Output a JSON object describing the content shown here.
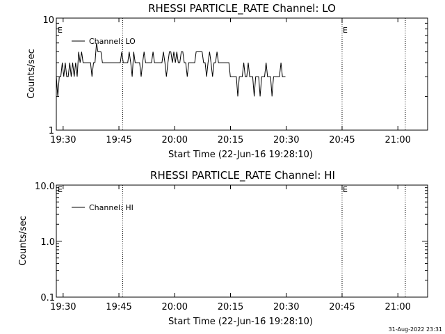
{
  "footer_stamp": "31-Aug-2022 23:31",
  "chart_data": [
    {
      "type": "line",
      "title": "RHESSI PARTICLE_RATE Channel: LO",
      "xlabel": "Start Time (22-Jun-16 19:28:10)",
      "ylabel": "Counts/sec",
      "yscale": "log",
      "ylim": [
        1,
        10
      ],
      "y_ticks": [
        "10",
        "1"
      ],
      "x_range": [
        "19:28:10",
        "21:08:00"
      ],
      "x_ticks": [
        "19:30",
        "19:45",
        "20:00",
        "20:15",
        "20:30",
        "20:45",
        "21:00"
      ],
      "legend": "Channel: LO",
      "legend_position": "top-left",
      "markers": [
        {
          "time": "19:46",
          "label": ""
        },
        {
          "time": "20:45",
          "label": "E"
        },
        {
          "time": "21:02",
          "label": ""
        }
      ],
      "corner_label": "E",
      "series": [
        {
          "x_start": "19:28:10",
          "step_seconds": 24,
          "values": [
            3,
            2,
            3,
            3,
            4,
            3,
            4,
            3,
            3,
            4,
            3,
            4,
            3,
            4,
            3,
            5,
            4,
            5,
            4,
            4,
            4,
            4,
            4,
            4,
            3,
            4,
            4,
            6,
            5,
            5,
            5,
            4,
            4,
            4,
            4,
            4,
            4,
            4,
            4,
            4,
            4,
            4,
            4,
            4,
            5,
            4,
            4,
            4,
            4,
            5,
            4,
            3,
            5,
            4,
            4,
            4,
            4,
            3,
            4,
            5,
            4,
            4,
            4,
            4,
            4,
            5,
            4,
            4,
            4,
            4,
            4,
            4,
            5,
            4,
            3,
            4,
            5,
            5,
            4,
            5,
            4,
            5,
            4,
            4,
            5,
            5,
            4,
            4,
            3,
            4,
            4,
            4,
            4,
            4,
            5,
            5,
            5,
            5,
            5,
            4,
            4,
            3,
            4,
            5,
            4,
            3,
            4,
            4,
            5,
            4,
            4,
            4,
            4,
            4,
            4,
            4,
            4,
            3,
            3,
            3,
            3,
            3,
            2,
            3,
            3,
            3,
            4,
            3,
            3,
            4,
            3,
            3,
            3,
            2,
            3,
            3,
            3,
            2,
            3,
            3,
            3,
            4,
            3,
            3,
            3,
            2,
            3,
            3,
            3,
            3,
            3,
            4,
            3,
            3,
            3
          ]
        }
      ]
    },
    {
      "type": "line",
      "title": "RHESSI PARTICLE_RATE Channel: HI",
      "xlabel": "Start Time (22-Jun-16 19:28:10)",
      "ylabel": "Counts/sec",
      "yscale": "log",
      "ylim": [
        0.1,
        10
      ],
      "y_ticks": [
        "10.0",
        "1.0",
        "0.1"
      ],
      "x_range": [
        "19:28:10",
        "21:08:00"
      ],
      "x_ticks": [
        "19:30",
        "19:45",
        "20:00",
        "20:15",
        "20:30",
        "20:45",
        "21:00"
      ],
      "legend": "Channel: HI",
      "legend_position": "top-left",
      "markers": [
        {
          "time": "19:46",
          "label": ""
        },
        {
          "time": "20:45",
          "label": "E"
        },
        {
          "time": "21:02",
          "label": ""
        }
      ],
      "corner_label": "E",
      "series": []
    }
  ]
}
